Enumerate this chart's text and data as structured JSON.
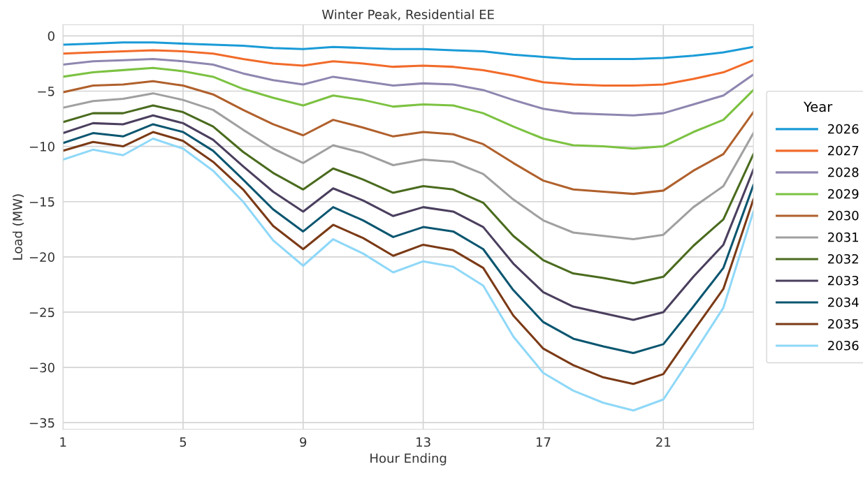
{
  "chart_data": {
    "type": "line",
    "title": "Winter Peak, Residential EE",
    "xlabel": "Hour Ending",
    "ylabel": "Load (MW)",
    "legend_title": "Year",
    "legend": "right",
    "grid": true,
    "marker": "none",
    "line_style": "solid",
    "x": [
      1,
      2,
      3,
      4,
      5,
      6,
      7,
      8,
      9,
      10,
      11,
      12,
      13,
      14,
      15,
      16,
      17,
      18,
      19,
      20,
      21,
      22,
      23,
      24
    ],
    "xlim": [
      1,
      24
    ],
    "xticks": [
      1,
      5,
      9,
      13,
      17,
      21
    ],
    "ylim": [
      -35.6,
      1.0
    ],
    "yticks": [
      {
        "value": 0,
        "label": "0"
      },
      {
        "value": -5,
        "label": "−5"
      },
      {
        "value": -10,
        "label": "−10"
      },
      {
        "value": -15,
        "label": "−15"
      },
      {
        "value": -20,
        "label": "−20"
      },
      {
        "value": -25,
        "label": "−25"
      },
      {
        "value": -30,
        "label": "−30"
      },
      {
        "value": -35,
        "label": "−35"
      }
    ],
    "series": [
      {
        "name": "2026",
        "color": "#1a9bd7",
        "values": [
          -0.8,
          -0.7,
          -0.6,
          -0.6,
          -0.7,
          -0.8,
          -0.9,
          -1.1,
          -1.2,
          -1.0,
          -1.1,
          -1.2,
          -1.2,
          -1.3,
          -1.4,
          -1.7,
          -1.9,
          -2.1,
          -2.1,
          -2.1,
          -2.0,
          -1.8,
          -1.5,
          -1.0
        ]
      },
      {
        "name": "2027",
        "color": "#f26b2a",
        "values": [
          -1.6,
          -1.5,
          -1.4,
          -1.3,
          -1.4,
          -1.6,
          -2.1,
          -2.5,
          -2.7,
          -2.3,
          -2.5,
          -2.8,
          -2.7,
          -2.8,
          -3.1,
          -3.6,
          -4.2,
          -4.4,
          -4.5,
          -4.5,
          -4.4,
          -3.9,
          -3.3,
          -2.2
        ]
      },
      {
        "name": "2028",
        "color": "#8f86b0",
        "values": [
          -2.6,
          -2.3,
          -2.2,
          -2.1,
          -2.3,
          -2.6,
          -3.4,
          -4.0,
          -4.4,
          -3.7,
          -4.1,
          -4.5,
          -4.3,
          -4.4,
          -4.9,
          -5.8,
          -6.6,
          -7.0,
          -7.1,
          -7.2,
          -7.0,
          -6.2,
          -5.4,
          -3.5
        ]
      },
      {
        "name": "2029",
        "color": "#7cc242",
        "values": [
          -3.7,
          -3.3,
          -3.1,
          -2.9,
          -3.2,
          -3.7,
          -4.8,
          -5.6,
          -6.3,
          -5.4,
          -5.8,
          -6.4,
          -6.2,
          -6.3,
          -7.0,
          -8.2,
          -9.3,
          -9.9,
          -10.0,
          -10.2,
          -10.0,
          -8.7,
          -7.6,
          -4.9
        ]
      },
      {
        "name": "2030",
        "color": "#b0602c",
        "values": [
          -5.1,
          -4.5,
          -4.4,
          -4.1,
          -4.5,
          -5.3,
          -6.7,
          -8.0,
          -9.0,
          -7.6,
          -8.3,
          -9.1,
          -8.7,
          -8.9,
          -9.8,
          -11.5,
          -13.1,
          -13.9,
          -14.1,
          -14.3,
          -14.0,
          -12.2,
          -10.7,
          -6.9
        ]
      },
      {
        "name": "2031",
        "color": "#a0a0a0",
        "values": [
          -6.5,
          -5.9,
          -5.7,
          -5.2,
          -5.8,
          -6.7,
          -8.5,
          -10.2,
          -11.5,
          -9.9,
          -10.6,
          -11.7,
          -11.2,
          -11.4,
          -12.5,
          -14.8,
          -16.7,
          -17.8,
          -18.1,
          -18.4,
          -18.0,
          -15.5,
          -13.6,
          -8.8
        ]
      },
      {
        "name": "2032",
        "color": "#4a6b1e",
        "values": [
          -7.8,
          -7.0,
          -7.0,
          -6.3,
          -6.9,
          -8.2,
          -10.5,
          -12.4,
          -13.9,
          -12.0,
          -13.0,
          -14.2,
          -13.6,
          -13.9,
          -15.1,
          -18.1,
          -20.3,
          -21.5,
          -21.9,
          -22.4,
          -21.8,
          -19.0,
          -16.6,
          -10.7
        ]
      },
      {
        "name": "2033",
        "color": "#4b3f5e",
        "values": [
          -8.8,
          -7.9,
          -8.0,
          -7.2,
          -7.9,
          -9.4,
          -11.8,
          -14.1,
          -15.9,
          -13.8,
          -14.9,
          -16.3,
          -15.5,
          -15.9,
          -17.3,
          -20.6,
          -23.2,
          -24.5,
          -25.1,
          -25.7,
          -25.0,
          -21.8,
          -18.9,
          -12.1
        ]
      },
      {
        "name": "2034",
        "color": "#0a5670",
        "values": [
          -9.7,
          -8.8,
          -9.1,
          -8.0,
          -8.7,
          -10.4,
          -13.0,
          -15.7,
          -17.7,
          -15.5,
          -16.7,
          -18.2,
          -17.3,
          -17.7,
          -19.3,
          -23.0,
          -25.9,
          -27.4,
          -28.1,
          -28.7,
          -27.9,
          -24.5,
          -21.0,
          -13.5
        ]
      },
      {
        "name": "2035",
        "color": "#7b3a16",
        "values": [
          -10.4,
          -9.6,
          -10.0,
          -8.7,
          -9.5,
          -11.4,
          -13.9,
          -17.2,
          -19.3,
          -17.1,
          -18.3,
          -19.9,
          -18.9,
          -19.4,
          -21.0,
          -25.3,
          -28.3,
          -29.8,
          -30.9,
          -31.5,
          -30.6,
          -26.7,
          -22.9,
          -14.8
        ]
      },
      {
        "name": "2036",
        "color": "#8fd8f8",
        "values": [
          -11.2,
          -10.3,
          -10.8,
          -9.3,
          -10.2,
          -12.2,
          -15.0,
          -18.5,
          -20.8,
          -18.4,
          -19.7,
          -21.4,
          -20.4,
          -20.9,
          -22.6,
          -27.2,
          -30.5,
          -32.1,
          -33.2,
          -33.9,
          -32.9,
          -28.8,
          -24.6,
          -15.9
        ]
      }
    ]
  }
}
